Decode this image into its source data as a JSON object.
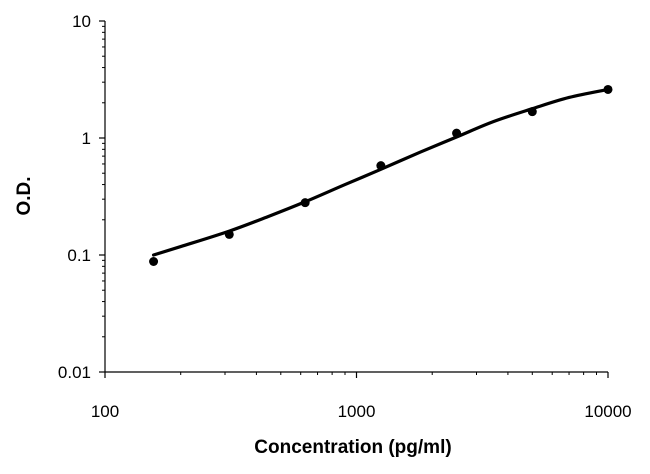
{
  "chart_data": {
    "type": "scatter",
    "title": "",
    "xlabel": "Concentration (pg/ml)",
    "ylabel": "O.D.",
    "xscale": "log",
    "yscale": "log",
    "xlim": [
      100,
      10000
    ],
    "ylim": [
      0.01,
      10
    ],
    "x_ticks": [
      "100",
      "1000",
      "10000"
    ],
    "y_ticks": [
      "0.01",
      "0.1",
      "1",
      "10"
    ],
    "grid": false,
    "legend": "none",
    "series": [
      {
        "kind": "points",
        "color": "#000000",
        "x": [
          156,
          312,
          625,
          1250,
          2500,
          5000,
          10000
        ],
        "y": [
          0.088,
          0.15,
          0.28,
          0.58,
          1.1,
          1.68,
          2.6
        ]
      },
      {
        "kind": "fit-curve",
        "color": "#000000",
        "x": [
          156,
          200,
          312,
          450,
          625,
          900,
          1250,
          1800,
          2500,
          3500,
          5000,
          7000,
          10000
        ],
        "y": [
          0.1,
          0.118,
          0.16,
          0.215,
          0.285,
          0.4,
          0.54,
          0.76,
          1.02,
          1.38,
          1.78,
          2.22,
          2.6
        ]
      }
    ]
  }
}
